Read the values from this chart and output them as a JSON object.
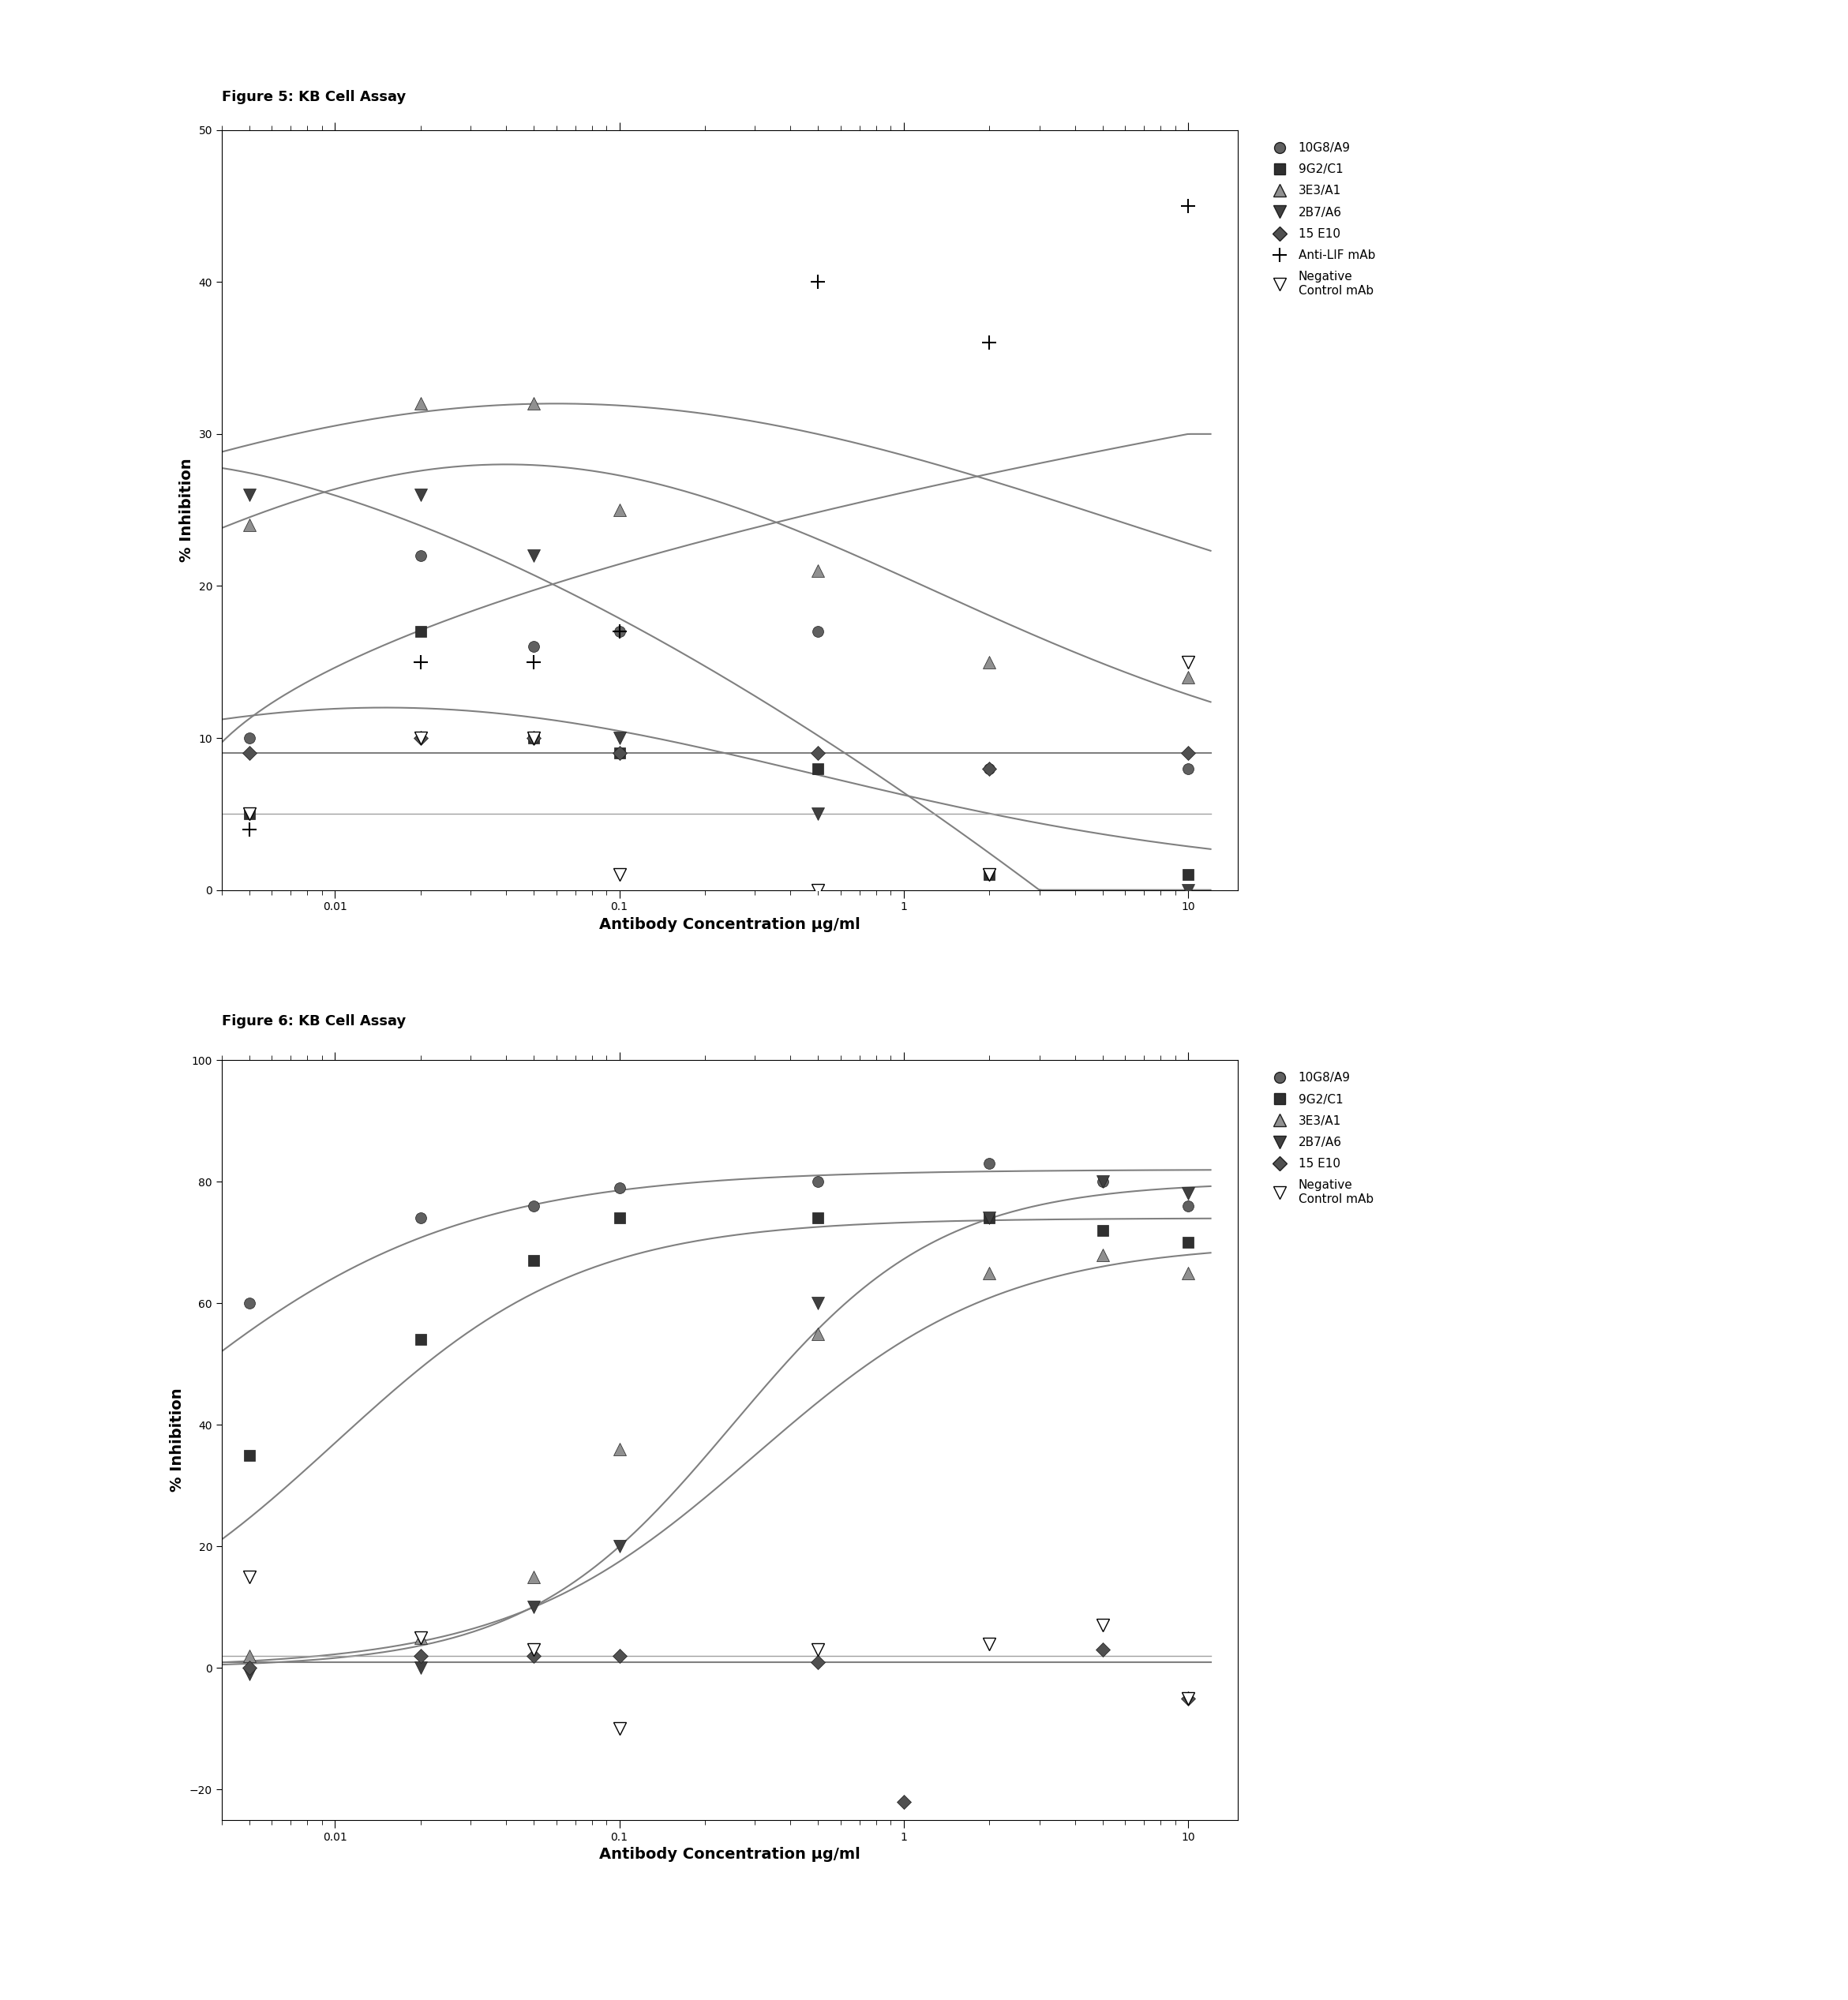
{
  "fig5_title": "Figure 5: KB Cell Assay",
  "fig6_title": "Figure 6: KB Cell Assay",
  "xlabel": "Antibody Concentration µg/ml",
  "ylabel": "% Inhibition",
  "background_color": "#ffffff",
  "fig5": {
    "ylim": [
      0,
      50
    ],
    "yticks": [
      0,
      10,
      20,
      30,
      40,
      50
    ],
    "series": {
      "10G8/A9": {
        "x": [
          0.005,
          0.02,
          0.05,
          0.1,
          0.5,
          2.0,
          10.0
        ],
        "y": [
          10,
          22,
          16,
          17,
          17,
          8,
          8
        ],
        "marker": "o",
        "color": "#606060",
        "markersize": 10
      },
      "9G2/C1": {
        "x": [
          0.005,
          0.02,
          0.05,
          0.1,
          0.5,
          2.0,
          10.0
        ],
        "y": [
          5,
          17,
          10,
          9,
          8,
          1,
          1
        ],
        "marker": "s",
        "color": "#303030",
        "markersize": 10
      },
      "3E3/A1": {
        "x": [
          0.005,
          0.02,
          0.05,
          0.1,
          0.5,
          2.0,
          10.0
        ],
        "y": [
          24,
          32,
          32,
          25,
          21,
          15,
          14
        ],
        "marker": "^",
        "color": "#909090",
        "markersize": 11
      },
      "2B7/A6": {
        "x": [
          0.005,
          0.02,
          0.05,
          0.1,
          0.5,
          2.0,
          10.0
        ],
        "y": [
          26,
          26,
          22,
          10,
          5,
          1,
          0
        ],
        "marker": "v",
        "color": "#404040",
        "markersize": 11
      },
      "15E10": {
        "x": [
          0.005,
          0.02,
          0.05,
          0.1,
          0.5,
          2.0,
          10.0
        ],
        "y": [
          9,
          10,
          10,
          9,
          9,
          8,
          9
        ],
        "marker": "D",
        "color": "#505050",
        "markersize": 9
      },
      "Anti-LIF mAb": {
        "x": [
          0.005,
          0.02,
          0.05,
          0.1,
          0.5,
          2.0,
          10.0
        ],
        "y": [
          4,
          15,
          15,
          17,
          40,
          36,
          45
        ],
        "marker": "+",
        "color": "#000000",
        "markersize": 13
      },
      "Negative Control mAb": {
        "x": [
          0.005,
          0.02,
          0.05,
          0.1,
          0.5,
          2.0,
          10.0
        ],
        "y": [
          5,
          10,
          10,
          1,
          0,
          1,
          15
        ],
        "marker": "v",
        "color": "#ffffff",
        "markeredgecolor": "#000000",
        "markersize": 11
      }
    }
  },
  "fig6": {
    "ylim": [
      -25,
      100
    ],
    "yticks": [
      -20,
      0,
      20,
      40,
      60,
      80,
      100
    ],
    "series": {
      "10G8/A9": {
        "x": [
          0.005,
          0.02,
          0.05,
          0.1,
          0.5,
          2.0,
          5.0,
          10.0
        ],
        "y": [
          60,
          74,
          76,
          79,
          80,
          83,
          80,
          76
        ],
        "marker": "o",
        "color": "#606060",
        "markersize": 10
      },
      "9G2/C1": {
        "x": [
          0.005,
          0.02,
          0.05,
          0.1,
          0.5,
          2.0,
          5.0,
          10.0
        ],
        "y": [
          35,
          54,
          67,
          74,
          74,
          74,
          72,
          70
        ],
        "marker": "s",
        "color": "#303030",
        "markersize": 10
      },
      "3E3/A1": {
        "x": [
          0.005,
          0.02,
          0.05,
          0.1,
          0.5,
          2.0,
          5.0,
          10.0
        ],
        "y": [
          2,
          5,
          15,
          36,
          55,
          65,
          68,
          65
        ],
        "marker": "^",
        "color": "#909090",
        "markersize": 11
      },
      "2B7/A6": {
        "x": [
          0.005,
          0.02,
          0.05,
          0.1,
          0.5,
          2.0,
          5.0,
          10.0
        ],
        "y": [
          -1,
          0,
          10,
          20,
          60,
          74,
          80,
          78
        ],
        "marker": "v",
        "color": "#404040",
        "markersize": 11
      },
      "15E10": {
        "x": [
          0.005,
          0.02,
          0.05,
          0.1,
          0.5,
          1.0,
          5.0,
          10.0
        ],
        "y": [
          0,
          2,
          2,
          2,
          1,
          -22,
          3,
          -5
        ],
        "marker": "D",
        "color": "#505050",
        "markersize": 9
      },
      "Negative Control mAb": {
        "x": [
          0.005,
          0.02,
          0.05,
          0.1,
          0.5,
          2.0,
          5.0,
          10.0
        ],
        "y": [
          15,
          5,
          3,
          -10,
          3,
          4,
          7,
          -5
        ],
        "marker": "v",
        "color": "#ffffff",
        "markeredgecolor": "#000000",
        "markersize": 11
      }
    }
  }
}
